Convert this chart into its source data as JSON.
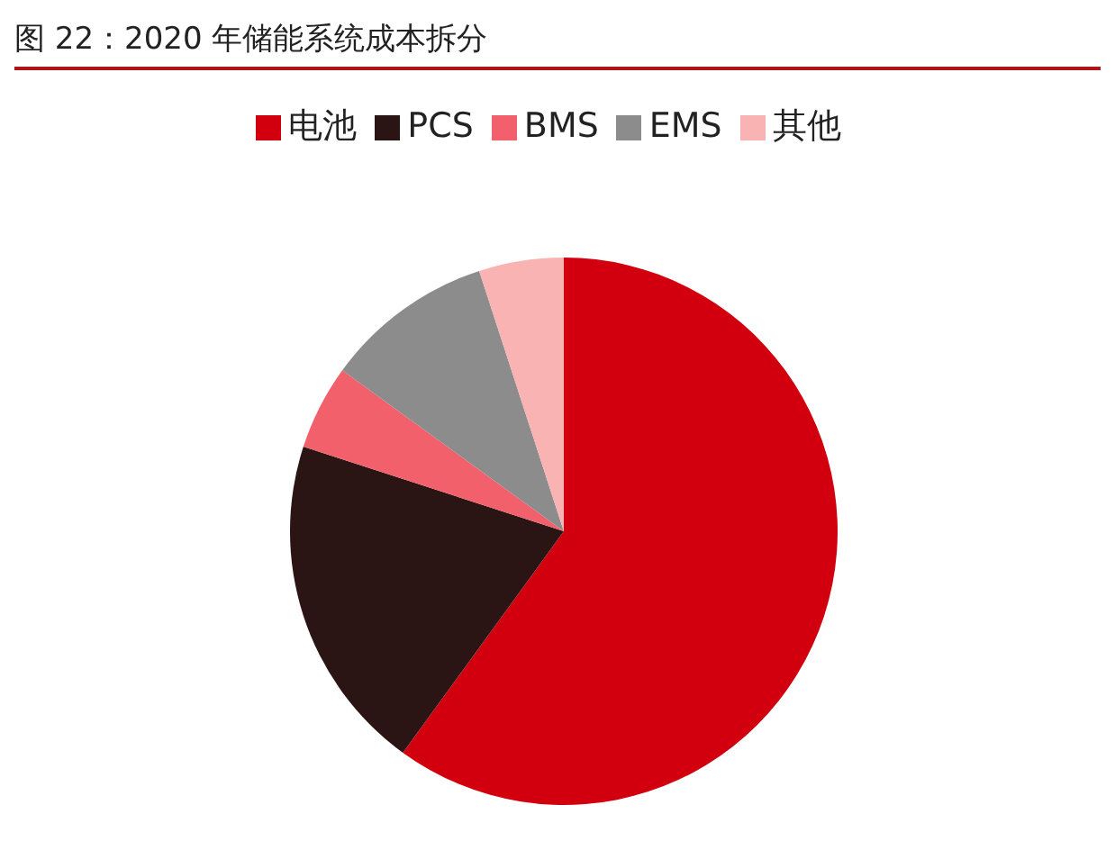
{
  "chart_data": {
    "type": "pie",
    "title": "图 22：2020 年储能系统成本拆分",
    "categories": [
      "电池",
      "PCS",
      "BMS",
      "EMS",
      "其他"
    ],
    "values": [
      60,
      20,
      5,
      10,
      5
    ],
    "colors": [
      "#d2000f",
      "#2a1414",
      "#f2606c",
      "#8c8c8c",
      "#f9b3b3"
    ],
    "legend": "top"
  }
}
